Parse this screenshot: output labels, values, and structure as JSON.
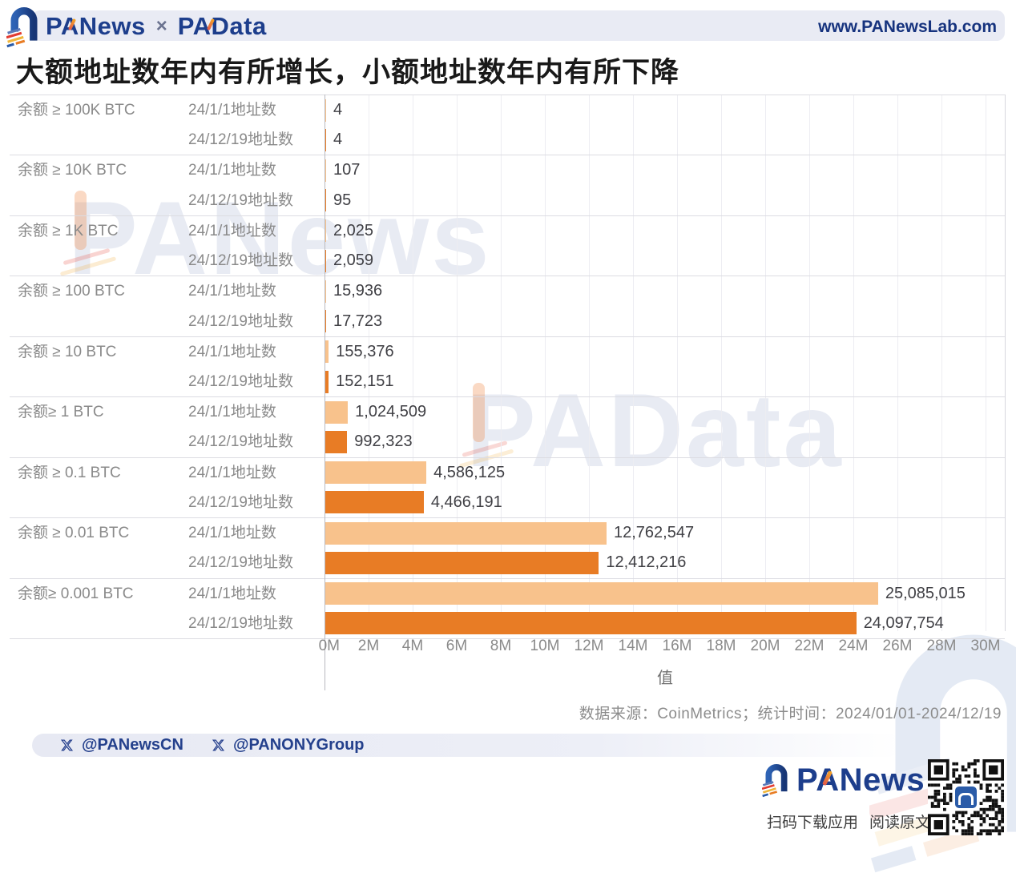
{
  "header": {
    "brand_primary": "PANews",
    "brand_separator": "×",
    "brand_secondary": "PAData",
    "website": "www.PANewsLab.com"
  },
  "title": "大额地址数年内有所增长，小额地址数年内有所下降",
  "chart_data": {
    "type": "bar",
    "orientation": "horizontal",
    "title": "大额地址数年内有所增长，小额地址数年内有所下降",
    "categories": [
      "余额 ≥ 100K BTC",
      "余额 ≥ 10K BTC",
      "余额 ≥ 1K BTC",
      "余额 ≥ 100 BTC",
      "余额 ≥ 10 BTC",
      "余额≥ 1 BTC",
      "余额 ≥ 0.1 BTC",
      "余额 ≥ 0.01 BTC",
      "余额≥ 0.001 BTC"
    ],
    "series": [
      {
        "name": "24/1/1地址数",
        "color": "#F8C28C",
        "values": [
          4,
          107,
          2025,
          15936,
          155376,
          1024509,
          4586125,
          12762547,
          25085015
        ]
      },
      {
        "name": "24/12/19地址数",
        "color": "#E87C25",
        "values": [
          4,
          95,
          2059,
          17723,
          152151,
          992323,
          4466191,
          12412216,
          24097754
        ]
      }
    ],
    "value_labels": [
      [
        "4",
        "4"
      ],
      [
        "107",
        "95"
      ],
      [
        "2,025",
        "2,059"
      ],
      [
        "15,936",
        "17,723"
      ],
      [
        "155,376",
        "152,151"
      ],
      [
        "1,024,509",
        "992,323"
      ],
      [
        "4,586,125",
        "4,466,191"
      ],
      [
        "12,762,547",
        "12,412,216"
      ],
      [
        "25,085,015",
        "24,097,754"
      ]
    ],
    "x_ticks": [
      "0M",
      "2M",
      "4M",
      "6M",
      "8M",
      "10M",
      "12M",
      "14M",
      "16M",
      "18M",
      "20M",
      "22M",
      "24M",
      "26M",
      "28M",
      "30M"
    ],
    "x_tick_value": 2000000,
    "xlim": [
      0,
      30000000
    ],
    "xlabel": "值",
    "grid": true,
    "legend_position": "none"
  },
  "source_note": "数据来源：CoinMetrics；统计时间：2024/01/01-2024/12/19",
  "social": {
    "handles": [
      "@PANewsCN",
      "@PANONYGroup"
    ]
  },
  "watermarks": {
    "text1": "PANews",
    "text2": "PAData"
  },
  "footer": {
    "brand": "PANews",
    "caption_scan": "扫码下载应用",
    "caption_read": "阅读原文"
  }
}
